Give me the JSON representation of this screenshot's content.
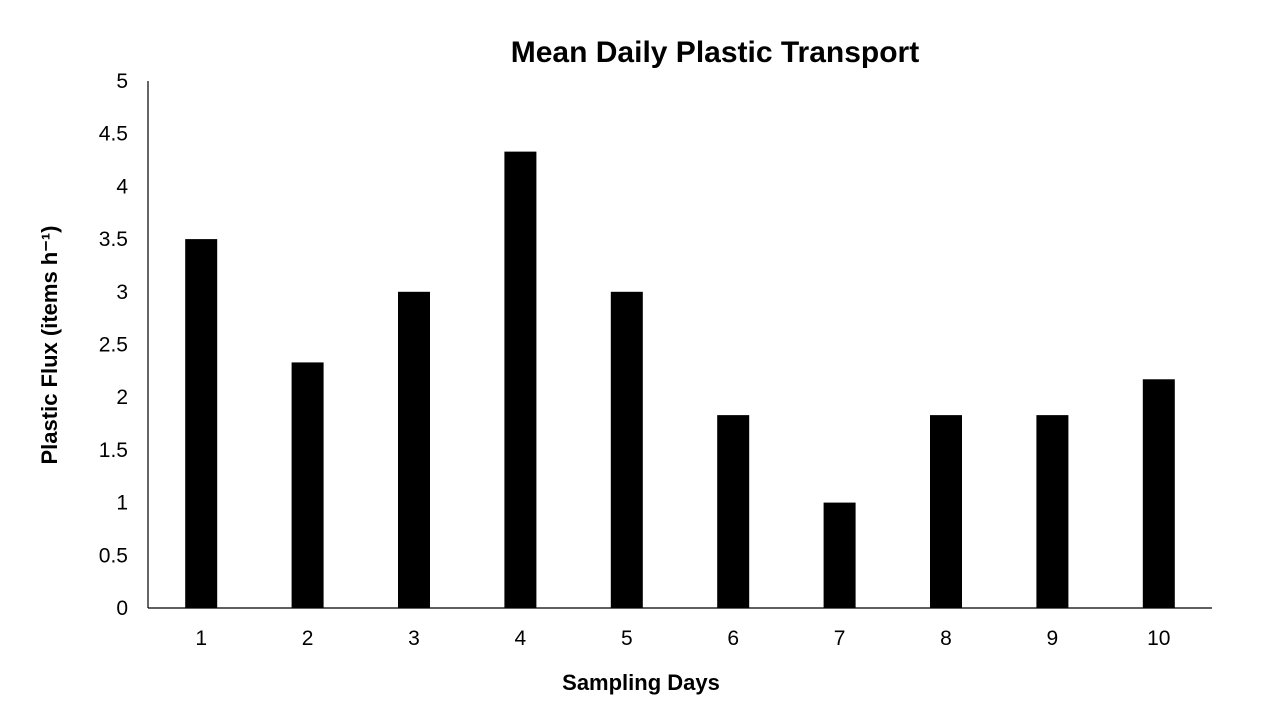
{
  "chart_data": {
    "type": "bar",
    "title": "Mean Daily Plastic Transport",
    "xlabel": "Sampling Days",
    "ylabel": "Plastic Flux (items h⁻¹)",
    "categories": [
      "1",
      "2",
      "3",
      "4",
      "5",
      "6",
      "7",
      "8",
      "9",
      "10"
    ],
    "values": [
      3.5,
      2.33,
      3.0,
      4.33,
      3.0,
      1.83,
      1.0,
      1.83,
      1.83,
      2.17
    ],
    "ylim": [
      0,
      5
    ],
    "yticks": [
      "0",
      "0.5",
      "1",
      "1.5",
      "2",
      "2.5",
      "3",
      "3.5",
      "4",
      "4.5",
      "5"
    ],
    "grid": false,
    "legend": "none",
    "bar_color": "#000000"
  }
}
